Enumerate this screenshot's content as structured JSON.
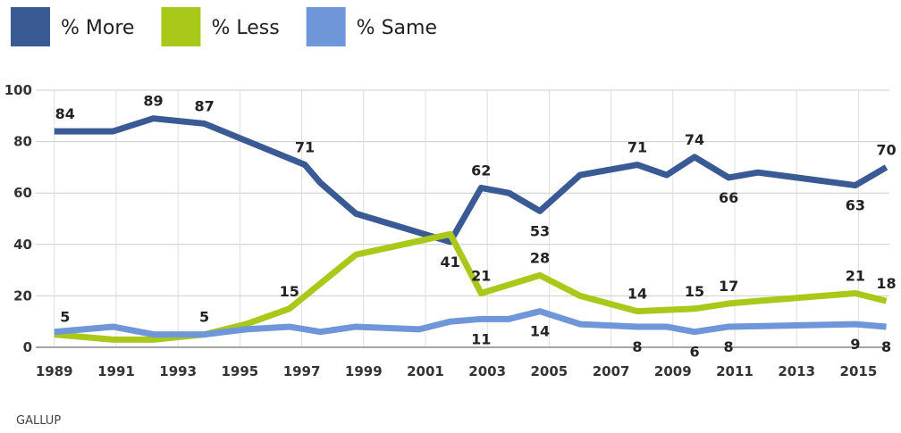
{
  "chart_data": {
    "type": "line",
    "source": "GALLUP",
    "xlim": [
      1988.4,
      2016
    ],
    "xticks": [
      1989,
      1991,
      1993,
      1995,
      1997,
      1999,
      2001,
      2003,
      2005,
      2007,
      2009,
      2011,
      2013,
      2015
    ],
    "ylim": [
      0,
      100
    ],
    "yticks": [
      0,
      20,
      40,
      60,
      80,
      100
    ],
    "grid": true,
    "series": [
      {
        "name": "% More",
        "color": "#3a5a95",
        "x": [
          1989,
          1990.9,
          1992.2,
          1993.85,
          1997.1,
          1997.6,
          1998.75,
          2001.8,
          2002.8,
          2003.7,
          2004.7,
          2006.0,
          2007.85,
          2008.8,
          2009.7,
          2010.8,
          2011.75,
          2014.9,
          2015.9
        ],
        "values": [
          84,
          84,
          89,
          87,
          71,
          64,
          52,
          41,
          62,
          60,
          53,
          67,
          71,
          67,
          74,
          66,
          68,
          63,
          70
        ],
        "value_labels": [
          "84",
          null,
          "89",
          "87",
          "71",
          null,
          null,
          "41",
          "62",
          null,
          "53",
          null,
          "71",
          null,
          "74",
          "66",
          null,
          "63",
          "70"
        ]
      },
      {
        "name": "% Less",
        "color": "#a8c919",
        "x": [
          1989,
          1990.9,
          1992.2,
          1993.85,
          1995.2,
          1996.6,
          1998.75,
          2001.8,
          2002.8,
          2004.7,
          2006.0,
          2007.85,
          2009.7,
          2010.8,
          2011.75,
          2014.9,
          2015.9
        ],
        "values": [
          5,
          3,
          3,
          5,
          9,
          15,
          36,
          44,
          21,
          28,
          20,
          14,
          15,
          17,
          18,
          21,
          18
        ],
        "value_labels": [
          "5",
          null,
          null,
          "5",
          null,
          "15",
          null,
          null,
          "21",
          "28",
          null,
          "14",
          "15",
          "17",
          null,
          "21",
          "18"
        ]
      },
      {
        "name": "% Same",
        "color": "#6f96d8",
        "x": [
          1989,
          1990.9,
          1992.2,
          1993.85,
          1995.2,
          1996.6,
          1997.6,
          1998.75,
          2000.8,
          2001.8,
          2002.8,
          2003.7,
          2004.7,
          2006.0,
          2007.85,
          2008.8,
          2009.7,
          2010.8,
          2014.9,
          2015.9
        ],
        "values": [
          6,
          8,
          5,
          5,
          7,
          8,
          6,
          8,
          7,
          10,
          11,
          11,
          14,
          9,
          8,
          8,
          6,
          8,
          9,
          8
        ],
        "value_labels": [
          null,
          null,
          null,
          null,
          null,
          null,
          null,
          null,
          null,
          null,
          "11",
          null,
          "14",
          null,
          "8",
          null,
          "6",
          "8",
          "9",
          "8"
        ]
      }
    ]
  }
}
